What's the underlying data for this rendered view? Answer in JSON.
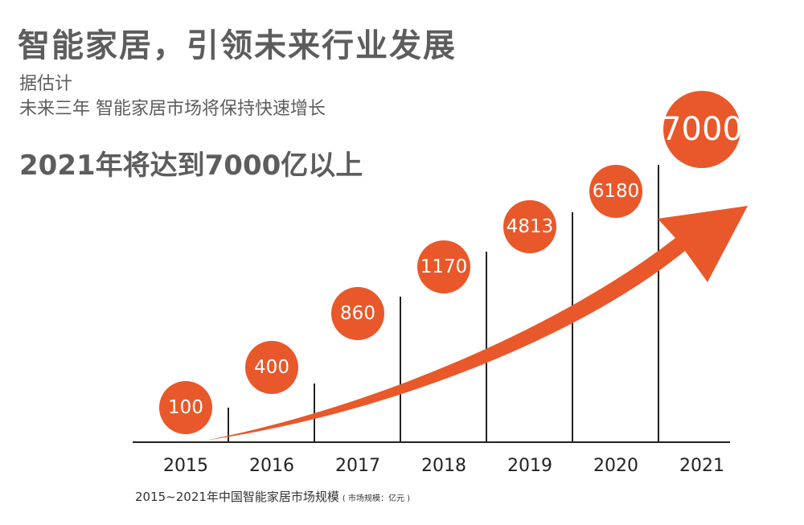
{
  "header": {
    "title": "智能家居，引领未来行业发展",
    "subtitle_line1": "据估计",
    "subtitle_line2": "未来三年 智能家居市场将保持快速增长",
    "highlight": "2021年将达到7000亿以上"
  },
  "caption": {
    "text": "2015~2021年中国智能家居市场规模",
    "unit": "( 市场规模：亿元 )"
  },
  "colors": {
    "accent": "#e8582a",
    "axis": "#222222",
    "bubble_text": "#ffffff",
    "text": "#5d5d5d"
  },
  "chart_data": {
    "type": "bar",
    "title": "2015~2021年中国智能家居市场规模",
    "ylabel": "市场规模：亿元",
    "categories": [
      "2015",
      "2016",
      "2017",
      "2018",
      "2019",
      "2020",
      "2021"
    ],
    "values": [
      100,
      400,
      860,
      1170,
      4813,
      6180,
      7000
    ],
    "value_labels": [
      "100",
      "400",
      "860",
      "1170",
      "4813",
      "6180",
      "7000"
    ],
    "annotations": [
      "rising trend arrow"
    ],
    "grid": false
  }
}
